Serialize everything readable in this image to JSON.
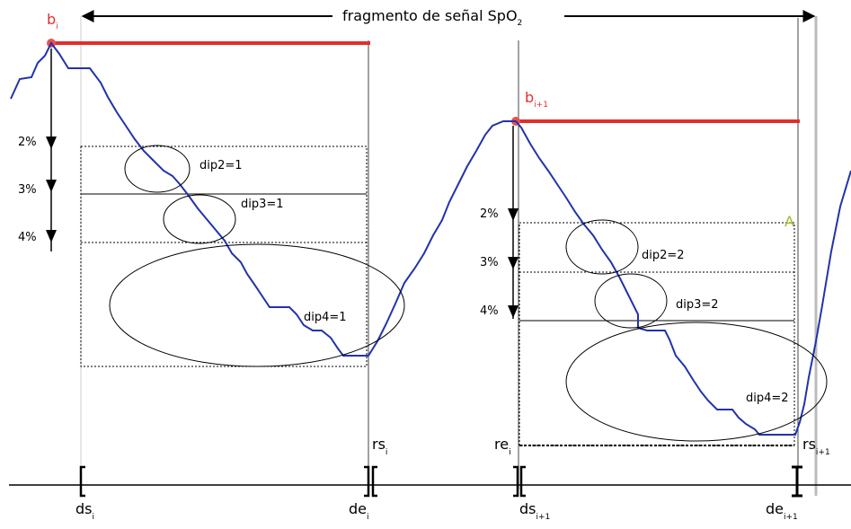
{
  "title": {
    "main": "fragmento de señal SpO",
    "subscript": "2"
  },
  "colors": {
    "signal": "#2233aa",
    "baseline": "#e42c2c",
    "lines": "#000000",
    "marker_A": "#9ab832",
    "faint_line": "#bbbbbb"
  },
  "left": {
    "baseline_label": "b",
    "baseline_sub": "i",
    "thresholds": [
      "2%",
      "3%",
      "4%"
    ],
    "dips": [
      "dip2=1",
      "dip3=1",
      "dip4=1"
    ],
    "rs_label": "rs",
    "rs_sub": "i",
    "ds_label": "ds",
    "ds_sub": "i",
    "de_label": "de",
    "de_sub": "i"
  },
  "right": {
    "baseline_label": "b",
    "baseline_sub": "i+1",
    "thresholds": [
      "2%",
      "3%",
      "4%"
    ],
    "dips": [
      "dip2=2",
      "dip3=2",
      "dip4=2"
    ],
    "re_label": "re",
    "re_sub": "i",
    "rs_label": "rs",
    "rs_sub": "i+1",
    "ds_label": "ds",
    "ds_sub": "i+1",
    "de_label": "de",
    "de_sub": "i+1",
    "marker": "A"
  }
}
